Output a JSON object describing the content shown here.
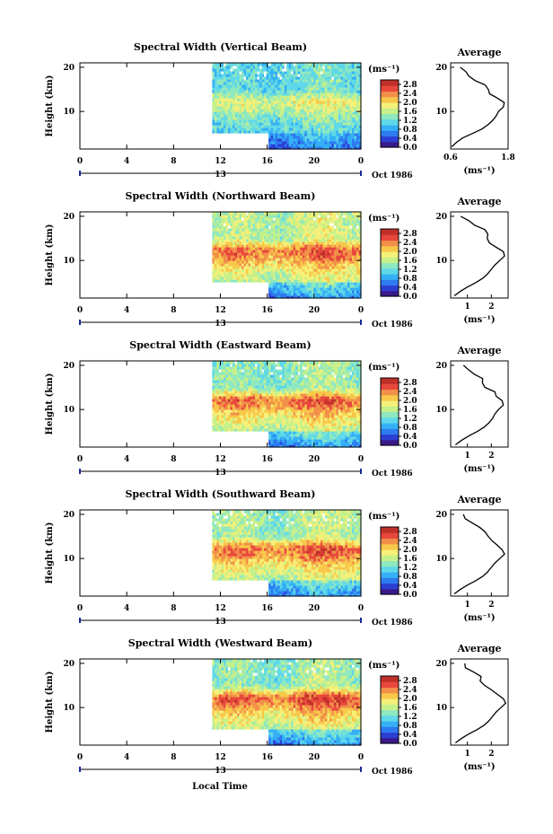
{
  "figure": {
    "xlabel": "Local Time",
    "date_label": "Oct 1986",
    "day_label": "13",
    "ylabel": "Height (km)",
    "unit_label": "(ms⁻¹)",
    "avg_title": "Average"
  },
  "colors": {
    "scale": [
      "#3a1a8a",
      "#2c3fd4",
      "#2e7bf0",
      "#35b0f5",
      "#5fd8e8",
      "#8ee8c0",
      "#c6f08a",
      "#f5f07a",
      "#f8c84a",
      "#f2904a",
      "#e8483c",
      "#c0302a"
    ],
    "missing": "#ffffff",
    "line": "#000000"
  },
  "chart_data": [
    {
      "type": "heatmap",
      "title": "Spectral Width (Vertical Beam)",
      "x_ticks": [
        "0",
        "4",
        "8",
        "12",
        "16",
        "20",
        "0"
      ],
      "y_ticks": [
        "20",
        "10"
      ],
      "xlim": [
        0,
        24
      ],
      "ylim": [
        1.5,
        21
      ],
      "data_start_hour": 11.3,
      "lower_gap": {
        "until_hour": 16,
        "min_km": 5
      },
      "colorbar": {
        "ticks": [
          "2.8",
          "2.4",
          "2.0",
          "1.6",
          "1.2",
          "0.8",
          "0.4",
          "0.0"
        ],
        "range": [
          0,
          3.0
        ]
      },
      "levels": {
        "low": 0.5,
        "mid": 1.0,
        "peak": 1.7,
        "peak_km": 11.5,
        "top": 1.1
      },
      "average_profile": {
        "xlim": [
          0.6,
          1.8
        ],
        "x_ticks": [
          "0.6",
          "1.8"
        ],
        "y": [
          2,
          3,
          4,
          5,
          6,
          7,
          8,
          9,
          10,
          11,
          12,
          13,
          14,
          15,
          16,
          17,
          18,
          19,
          20
        ],
        "x": [
          0.62,
          0.72,
          0.85,
          1.05,
          1.25,
          1.38,
          1.48,
          1.55,
          1.6,
          1.7,
          1.72,
          1.58,
          1.45,
          1.38,
          1.3,
          1.18,
          1.02,
          0.88,
          0.76
        ]
      }
    },
    {
      "type": "heatmap",
      "title": "Spectral Width (Northward Beam)",
      "x_ticks": [
        "0",
        "4",
        "8",
        "12",
        "16",
        "20",
        "0"
      ],
      "y_ticks": [
        "20",
        "10"
      ],
      "xlim": [
        0,
        24
      ],
      "ylim": [
        1.5,
        21
      ],
      "data_start_hour": 11.3,
      "lower_gap": {
        "until_hour": 16,
        "min_km": 5
      },
      "colorbar": {
        "ticks": [
          "2.8",
          "2.4",
          "2.0",
          "1.6",
          "1.2",
          "0.8",
          "0.4",
          "0.0"
        ],
        "range": [
          0,
          3.0
        ]
      },
      "levels": {
        "low": 0.6,
        "mid": 1.5,
        "peak": 2.4,
        "peak_km": 11.5,
        "top": 1.5
      },
      "average_profile": {
        "xlim": [
          0.3,
          2.7
        ],
        "x_ticks": [
          "1",
          "2"
        ],
        "y": [
          2,
          3,
          4,
          5,
          6,
          7,
          8,
          9,
          10,
          11,
          12,
          13,
          14,
          15,
          16,
          17,
          18,
          19,
          20
        ],
        "x": [
          0.45,
          0.7,
          1.0,
          1.35,
          1.65,
          1.85,
          2.0,
          2.15,
          2.35,
          2.55,
          2.5,
          2.2,
          2.05,
          1.9,
          1.75,
          1.6,
          1.35,
          1.1,
          0.85
        ]
      }
    },
    {
      "type": "heatmap",
      "title": "Spectral Width (Eastward Beam)",
      "x_ticks": [
        "0",
        "4",
        "8",
        "12",
        "16",
        "20",
        "0"
      ],
      "y_ticks": [
        "20",
        "10"
      ],
      "xlim": [
        0,
        24
      ],
      "ylim": [
        1.5,
        21
      ],
      "data_start_hour": 11.3,
      "lower_gap": {
        "until_hour": 16,
        "min_km": 5
      },
      "colorbar": {
        "ticks": [
          "2.8",
          "2.4",
          "2.0",
          "1.6",
          "1.2",
          "0.8",
          "0.4",
          "0.0"
        ],
        "range": [
          0,
          3.0
        ]
      },
      "levels": {
        "low": 0.6,
        "mid": 1.5,
        "peak": 2.4,
        "peak_km": 11.5,
        "top": 1.3
      },
      "average_profile": {
        "xlim": [
          0.3,
          2.7
        ],
        "x_ticks": [
          "1",
          "2"
        ],
        "y": [
          2,
          3,
          4,
          5,
          6,
          7,
          8,
          9,
          10,
          11,
          12,
          13,
          14,
          15,
          16,
          17,
          18,
          19,
          20
        ],
        "x": [
          0.5,
          0.75,
          1.05,
          1.4,
          1.7,
          1.9,
          2.05,
          2.15,
          2.3,
          2.5,
          2.45,
          2.2,
          2.05,
          1.85,
          1.7,
          1.5,
          1.2,
          0.95,
          0.8
        ]
      }
    },
    {
      "type": "heatmap",
      "title": "Spectral Width (Southward Beam)",
      "x_ticks": [
        "0",
        "4",
        "8",
        "12",
        "16",
        "20",
        "0"
      ],
      "y_ticks": [
        "20",
        "10"
      ],
      "xlim": [
        0,
        24
      ],
      "ylim": [
        1.5,
        21
      ],
      "data_start_hour": 11.3,
      "lower_gap": {
        "until_hour": 16,
        "min_km": 5
      },
      "colorbar": {
        "ticks": [
          "2.8",
          "2.4",
          "2.0",
          "1.6",
          "1.2",
          "0.8",
          "0.4",
          "0.0"
        ],
        "range": [
          0,
          3.0
        ]
      },
      "levels": {
        "low": 0.6,
        "mid": 1.5,
        "peak": 2.4,
        "peak_km": 11.5,
        "top": 1.4
      },
      "average_profile": {
        "xlim": [
          0.3,
          2.7
        ],
        "x_ticks": [
          "1",
          "2"
        ],
        "y": [
          2,
          3,
          4,
          5,
          6,
          7,
          8,
          9,
          10,
          11,
          12,
          13,
          14,
          15,
          16,
          17,
          18,
          19,
          20
        ],
        "x": [
          0.45,
          0.7,
          1.0,
          1.35,
          1.65,
          1.85,
          2.0,
          2.15,
          2.35,
          2.55,
          2.45,
          2.25,
          2.1,
          1.95,
          1.8,
          1.6,
          1.3,
          1.05,
          0.8
        ]
      }
    },
    {
      "type": "heatmap",
      "title": "Spectral Width (Westward Beam)",
      "x_ticks": [
        "0",
        "4",
        "8",
        "12",
        "16",
        "20",
        "0"
      ],
      "y_ticks": [
        "20",
        "10"
      ],
      "xlim": [
        0,
        24
      ],
      "ylim": [
        1.5,
        21
      ],
      "data_start_hour": 11.3,
      "lower_gap": {
        "until_hour": 16,
        "min_km": 5
      },
      "colorbar": {
        "ticks": [
          "2.8",
          "2.4",
          "2.0",
          "1.6",
          "1.2",
          "0.8",
          "0.4",
          "0.0"
        ],
        "range": [
          0,
          3.0
        ]
      },
      "levels": {
        "low": 0.6,
        "mid": 1.5,
        "peak": 2.5,
        "peak_km": 11.5,
        "top": 1.3
      },
      "average_profile": {
        "xlim": [
          0.3,
          2.7
        ],
        "x_ticks": [
          "1",
          "2"
        ],
        "y": [
          2,
          3,
          4,
          5,
          6,
          7,
          8,
          9,
          10,
          11,
          12,
          13,
          14,
          15,
          16,
          17,
          18,
          19,
          20
        ],
        "x": [
          0.5,
          0.75,
          1.05,
          1.4,
          1.7,
          1.9,
          2.05,
          2.2,
          2.4,
          2.6,
          2.5,
          2.25,
          2.05,
          1.85,
          1.65,
          1.45,
          1.15,
          0.9,
          0.75
        ]
      }
    }
  ]
}
